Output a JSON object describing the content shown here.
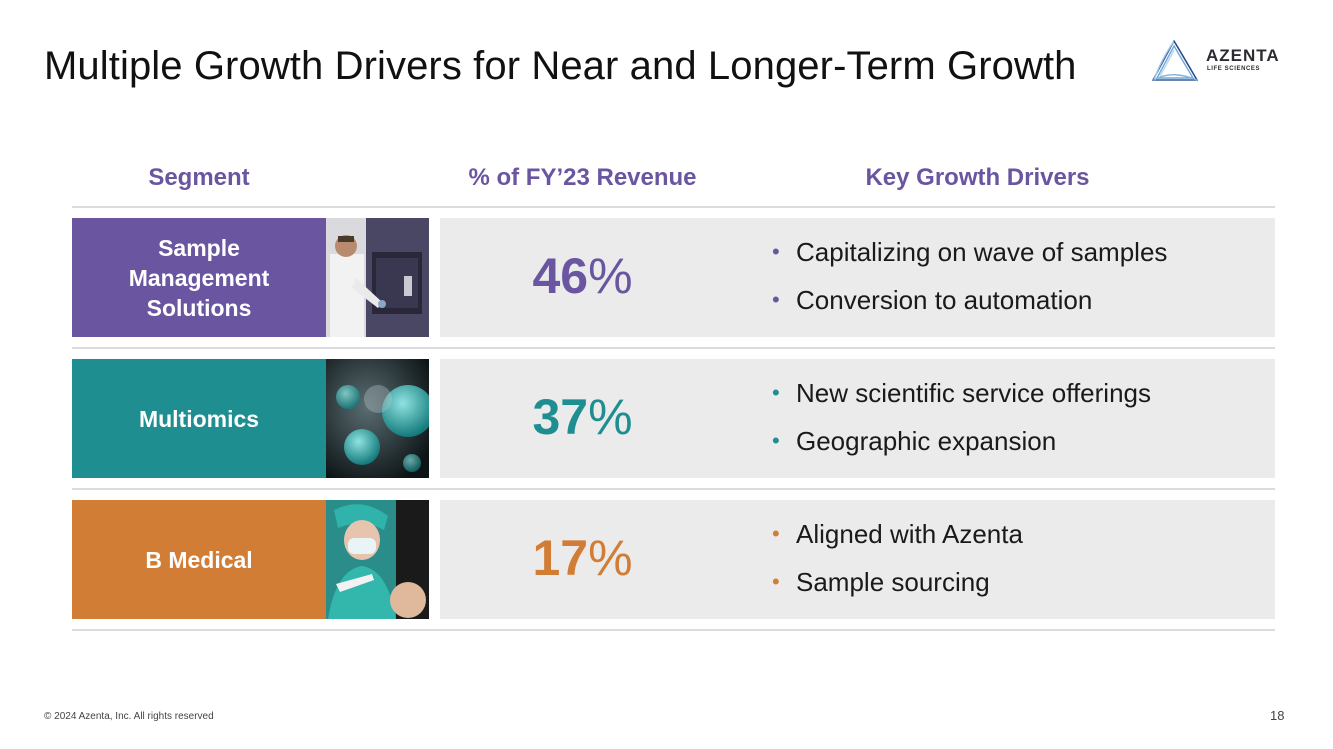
{
  "slide": {
    "title": "Multiple Growth Drivers for Near and Longer-Term Growth",
    "footer": "© 2024 Azenta, Inc.  All rights reserved",
    "page_number": "18"
  },
  "logo": {
    "name": "AZENTA",
    "tagline": "LIFE SCIENCES",
    "icon": "azenta-triangle-icon"
  },
  "table": {
    "headers": {
      "segment": "Segment",
      "revenue": "% of FY’23 Revenue",
      "drivers": "Key Growth Drivers"
    },
    "header_color": "#6a55a1",
    "rows": [
      {
        "segment": "Sample Management Solutions",
        "segment_lines": [
          "Sample",
          "Management",
          "Solutions"
        ],
        "color": "#6a55a1",
        "pct_number": "46",
        "pct_sign": "%",
        "image": "lab-scientist-freezer-photo",
        "drivers": [
          "Capitalizing on wave of samples",
          "Conversion to automation"
        ]
      },
      {
        "segment": "Multiomics",
        "segment_lines": [
          "Multiomics"
        ],
        "color": "#1f8e91",
        "pct_number": "37",
        "pct_sign": "%",
        "image": "virus-particles-photo",
        "drivers": [
          "New scientific service offerings",
          "Geographic expansion"
        ]
      },
      {
        "segment": "B Medical",
        "segment_lines": [
          "B Medical"
        ],
        "color": "#d27d35",
        "pct_number": "17",
        "pct_sign": "%",
        "image": "vaccination-nurse-photo",
        "drivers": [
          "Aligned with Azenta",
          "Sample sourcing"
        ]
      }
    ]
  }
}
